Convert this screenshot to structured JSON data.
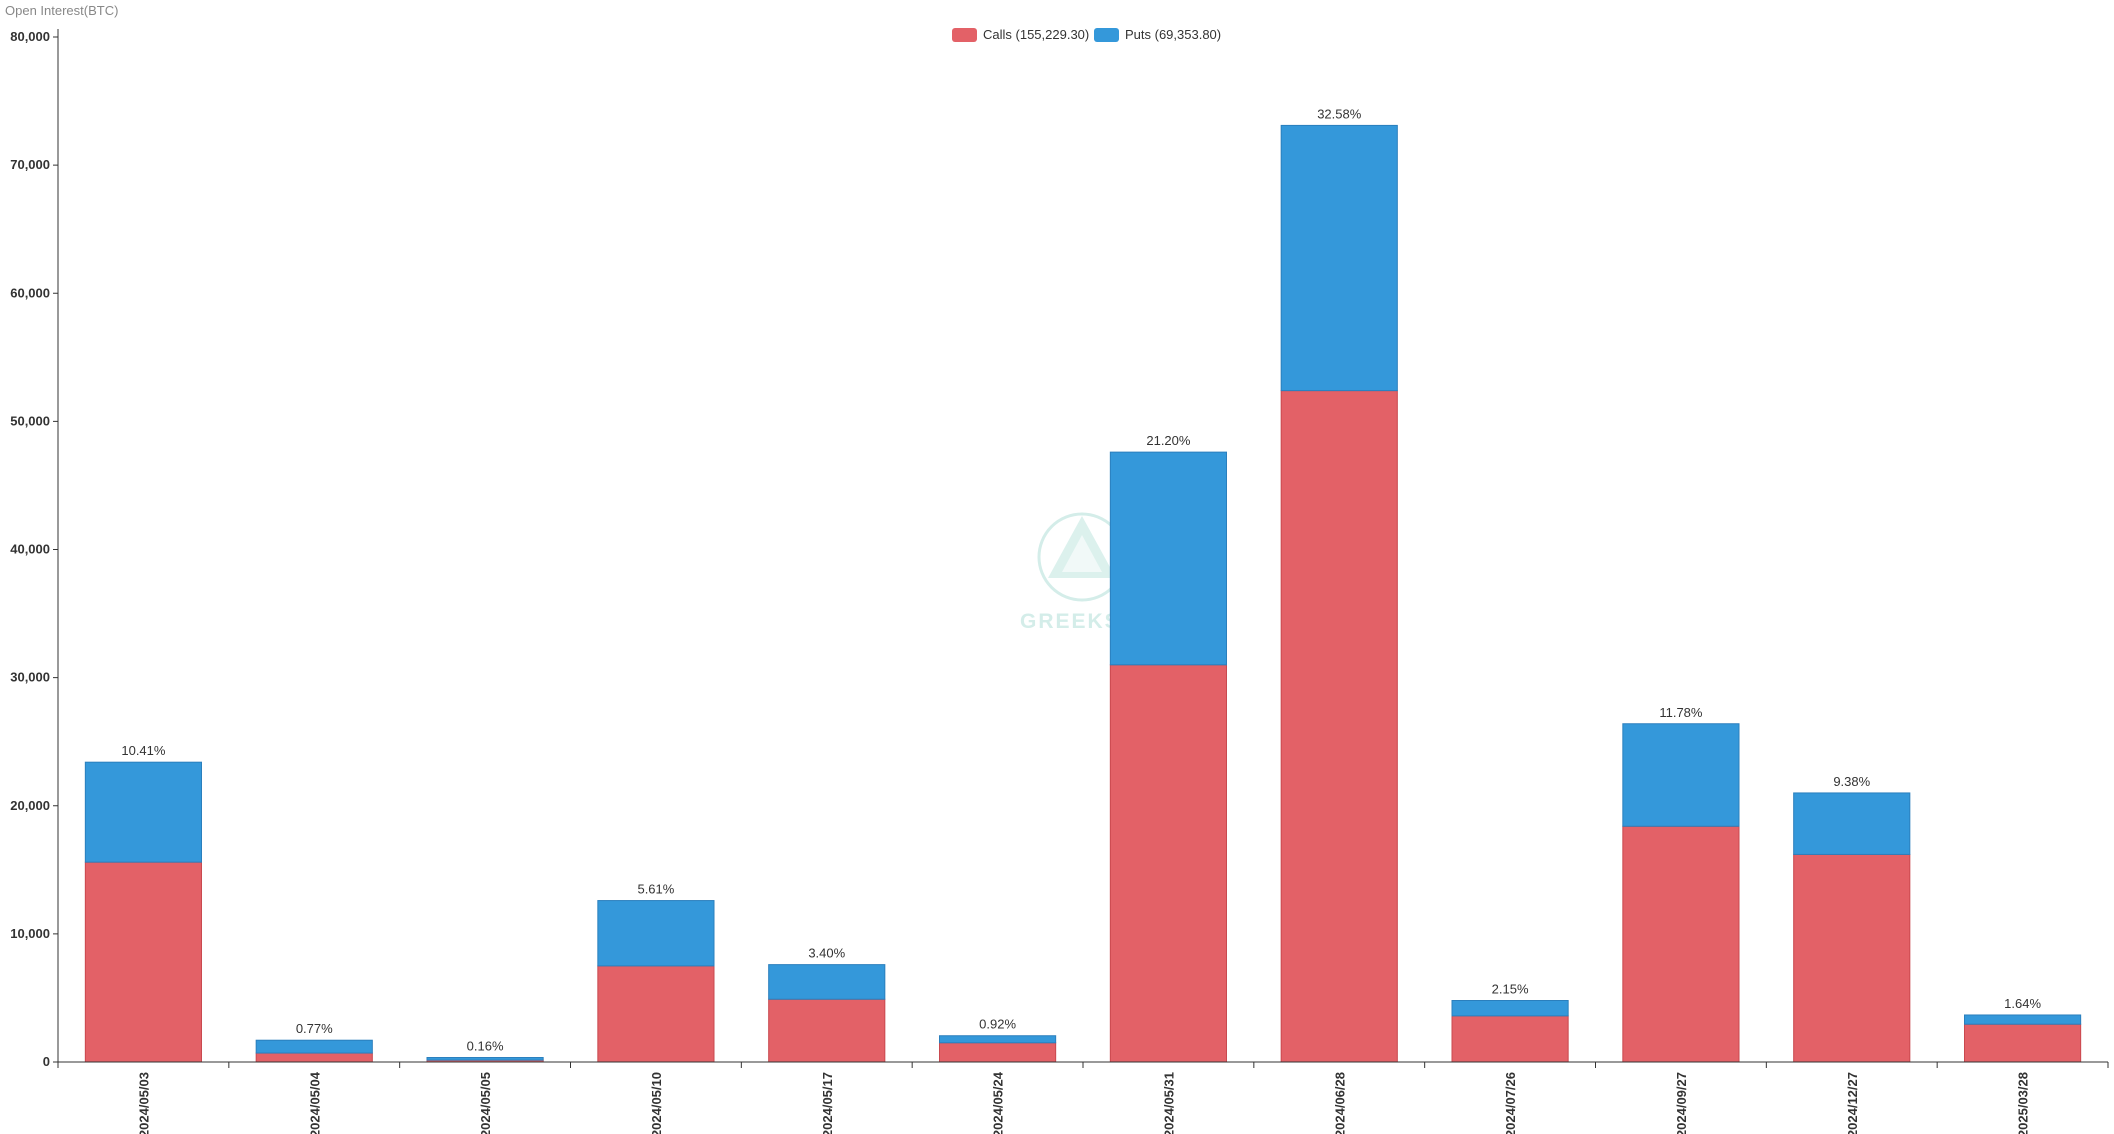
{
  "chart_data": {
    "type": "bar",
    "stacked": true,
    "ylabel": "Open Interest(BTC)",
    "xlabel": "",
    "title": "",
    "ylim": [
      0,
      80000
    ],
    "yticks": [
      0,
      10000,
      20000,
      30000,
      40000,
      50000,
      60000,
      70000,
      80000
    ],
    "ytick_labels": [
      "0",
      "10,000",
      "20,000",
      "30,000",
      "40,000",
      "50,000",
      "60,000",
      "70,000",
      "80,000"
    ],
    "grid": false,
    "legend_position": "top-center",
    "categories": [
      "2024/05/03",
      "2024/05/04",
      "2024/05/05",
      "2024/05/10",
      "2024/05/17",
      "2024/05/24",
      "2024/05/31",
      "2024/06/28",
      "2024/07/26",
      "2024/09/27",
      "2024/12/27",
      "2025/03/28"
    ],
    "series": [
      {
        "name": "Calls",
        "legend_label": "Calls (155,229.30)",
        "color": "#e36167",
        "values": [
          15600,
          700,
          150,
          7500,
          4900,
          1500,
          31000,
          52400,
          3600,
          18400,
          16200,
          2950
        ]
      },
      {
        "name": "Puts",
        "legend_label": "Puts (69,353.80)",
        "color": "#3498da",
        "values": [
          7800,
          1000,
          200,
          5100,
          2700,
          550,
          16600,
          20700,
          1200,
          8000,
          4800,
          720
        ]
      }
    ],
    "percent_labels": [
      "10.41%",
      "0.77%",
      "0.16%",
      "5.61%",
      "3.40%",
      "0.92%",
      "21.20%",
      "32.58%",
      "2.15%",
      "11.78%",
      "9.38%",
      "1.64%"
    ],
    "watermark": "GREEKS.LIVE"
  }
}
